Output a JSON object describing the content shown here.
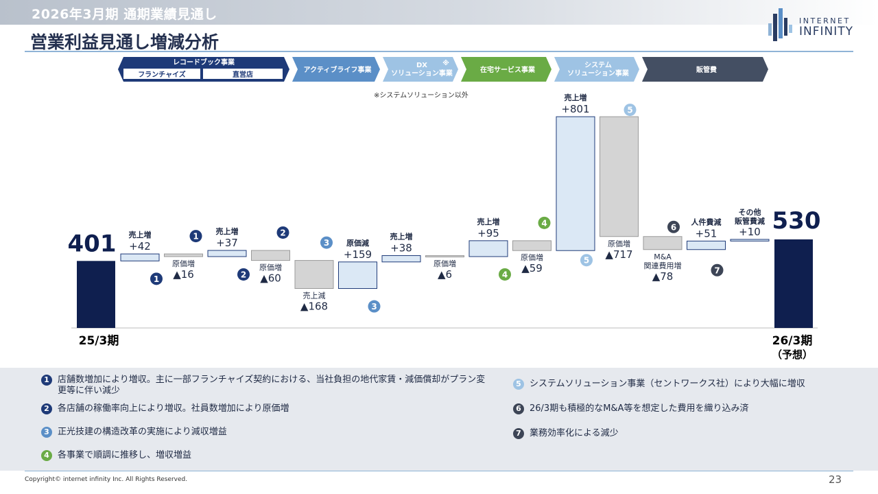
{
  "header": {
    "top_title": "2026年3月期 通期業績見通し",
    "page_title": "営業利益見通し増減分析"
  },
  "logo": {
    "line1": "INTERNET",
    "line2": "INFINITY"
  },
  "segments": [
    {
      "label": "レコードブック事業",
      "sub": [
        "フランチャイズ",
        "直営店"
      ],
      "color": "#1e3a78"
    },
    {
      "label": "アクティブライフ事業",
      "color": "#5b8fc7"
    },
    {
      "label": "DX\nソリューション事業",
      "mark": "※",
      "color": "#9ec3e4"
    },
    {
      "label": "在宅サービス事業",
      "color": "#6aab45"
    },
    {
      "label": "システム\nソリューション事業",
      "color": "#9ec3e4"
    },
    {
      "label": "販管費",
      "color": "#444f63"
    }
  ],
  "chart_note": "※システムソリューション以外",
  "colors": {
    "total": "#0f1f4f",
    "increase": "#dbe8f5",
    "decrease": "#d4d4d4",
    "c1": "#1e3a78",
    "c2": "#1e3a78",
    "c3": "#5b8fc7",
    "c4": "#6aab45",
    "c5": "#9ec3e4",
    "c6": "#3d4556",
    "c7": "#3d4556"
  },
  "chart_data": {
    "type": "waterfall",
    "start": {
      "label": "25/3期",
      "value": 401
    },
    "end": {
      "label": "26/3期",
      "sublabel": "（予想）",
      "value": 530
    },
    "steps": [
      {
        "label": "売上増",
        "value_text": "+42",
        "delta": 42,
        "badge": "1"
      },
      {
        "label": "原価増",
        "value_text": "▲16",
        "delta": -16,
        "badge": "1"
      },
      {
        "label": "売上増",
        "value_text": "+37",
        "delta": 37,
        "badge": "2"
      },
      {
        "label": "原価増",
        "value_text": "▲60",
        "delta": -60,
        "badge": "2"
      },
      {
        "label": "売上減",
        "value_text": "▲168",
        "delta": -168,
        "badge": "3"
      },
      {
        "label": "原価減",
        "value_text": "+159",
        "delta": 159,
        "badge": "3"
      },
      {
        "label": "売上増",
        "value_text": "+38",
        "delta": 38
      },
      {
        "label": "原価増",
        "value_text": "▲6",
        "delta": -6
      },
      {
        "label": "売上増",
        "value_text": "+95",
        "delta": 95,
        "badge": "4"
      },
      {
        "label": "原価増",
        "value_text": "▲59",
        "delta": -59,
        "badge": "4"
      },
      {
        "label": "売上増",
        "value_text": "+801",
        "delta": 801,
        "badge": "5"
      },
      {
        "label": "原価増",
        "value_text": "▲717",
        "delta": -717,
        "badge": "5"
      },
      {
        "label": "M&A\n関連費用増",
        "value_text": "▲78",
        "delta": -78,
        "badge": "6"
      },
      {
        "label": "人件費減",
        "value_text": "+51",
        "delta": 51,
        "badge": "7"
      },
      {
        "label": "その他\n販管費減",
        "value_text": "+10",
        "delta": 10
      }
    ]
  },
  "notes": [
    {
      "num": "1",
      "text": "店舗数増加により増収。主に一部フランチャイズ契約における、当社負担の地代家賃・減価償却がプラン変更等に伴い減少"
    },
    {
      "num": "2",
      "text": "各店舗の稼働率向上により増収。社員数増加により原価増"
    },
    {
      "num": "3",
      "text": "正光技建の構造改革の実施により減収増益"
    },
    {
      "num": "4",
      "text": "各事業で順調に推移し、増収増益"
    },
    {
      "num": "5",
      "text": "システムソリューション事業（セントワークス社）により大幅に増収"
    },
    {
      "num": "6",
      "text": "26/3期も積極的なM&A等を想定した費用を織り込み済"
    },
    {
      "num": "7",
      "text": "業務効率化による減少"
    }
  ],
  "footer": {
    "copyright": "Copyright© internet infinity Inc. All Rights Reserved.",
    "page": "23"
  }
}
